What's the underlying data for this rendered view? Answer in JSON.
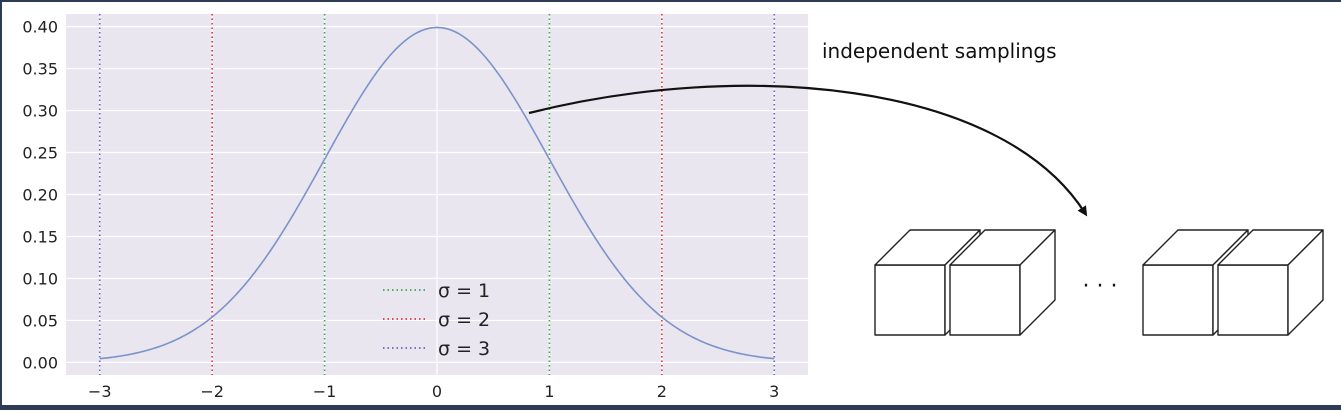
{
  "annotation": {
    "text": "independent samplings"
  },
  "ellipsis": "· · ·",
  "colors": {
    "plot_bg": "#e9e6f0",
    "grid": "#ffffff",
    "curve": "#7b93c9",
    "sigma1": "#3fa34d",
    "sigma2": "#d9343f",
    "sigma3": "#6d5fc6",
    "arrow": "#111111",
    "cube_stroke": "#222222"
  },
  "chart_data": {
    "type": "line",
    "title": "",
    "xlabel": "",
    "ylabel": "",
    "xlim": [
      -3.3,
      3.3
    ],
    "ylim": [
      -0.015,
      0.415
    ],
    "x_ticks": [
      -3,
      -2,
      -1,
      0,
      1,
      2,
      3
    ],
    "x_tick_labels": [
      "−3",
      "−2",
      "−1",
      "0",
      "1",
      "2",
      "3"
    ],
    "y_ticks": [
      0.0,
      0.05,
      0.1,
      0.15,
      0.2,
      0.25,
      0.3,
      0.35,
      0.4
    ],
    "y_tick_labels": [
      "0.00",
      "0.05",
      "0.10",
      "0.15",
      "0.20",
      "0.25",
      "0.30",
      "0.35",
      "0.40"
    ],
    "grid": true,
    "series": [
      {
        "kind": "curve",
        "function": "standard normal pdf",
        "x_range": [
          -3,
          3
        ]
      }
    ],
    "vlines": [
      {
        "x": [
          -1,
          1
        ],
        "label": "σ = 1",
        "color": "#3fa34d",
        "style": "dotted"
      },
      {
        "x": [
          -2,
          2
        ],
        "label": "σ = 2",
        "color": "#d9343f",
        "style": "dotted"
      },
      {
        "x": [
          -3,
          3
        ],
        "label": "σ = 3",
        "color": "#6d5fc6",
        "style": "dotted"
      }
    ],
    "legend": {
      "position": "lower-center",
      "entries": [
        "σ = 1",
        "σ = 2",
        "σ = 3"
      ]
    }
  }
}
